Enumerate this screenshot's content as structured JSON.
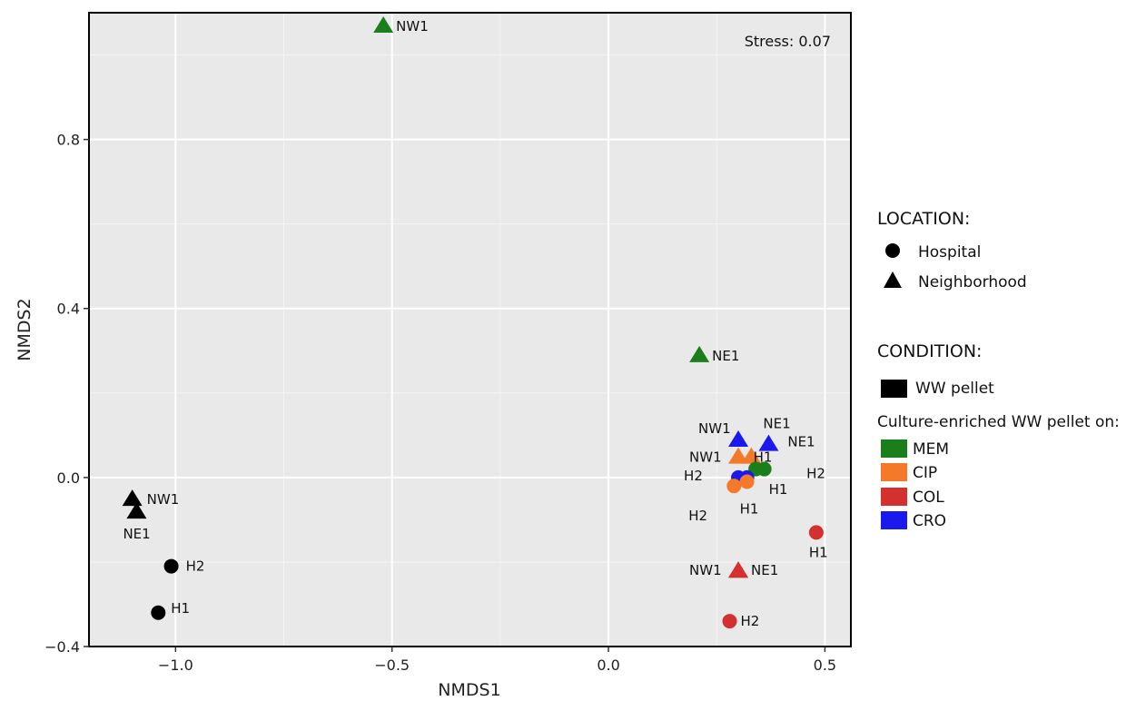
{
  "chart_data": {
    "type": "scatter",
    "xlabel": "NMDS1",
    "ylabel": "NMDS2",
    "xlim": [
      -1.2,
      0.56
    ],
    "ylim": [
      -0.4,
      1.1
    ],
    "x_ticks": [
      -1.0,
      -0.5,
      0.0,
      0.5
    ],
    "x_tick_labels": [
      "−1.0",
      "−0.5",
      "0.0",
      "0.5"
    ],
    "y_ticks": [
      -0.4,
      0.0,
      0.4,
      0.8
    ],
    "y_tick_labels": [
      "−0.4",
      "0.0",
      "0.4",
      "0.8"
    ],
    "grid": true,
    "annotation": "Stress: 0.07",
    "points": [
      {
        "x": -0.52,
        "y": 1.07,
        "label": "NW1",
        "shape": "triangle",
        "color": "#1a7f1a",
        "lx": 14,
        "ly": 6
      },
      {
        "x": 0.21,
        "y": 0.29,
        "label": "NE1",
        "shape": "triangle",
        "color": "#1a7f1a",
        "lx": 14,
        "ly": 6
      },
      {
        "x": 0.3,
        "y": 0.09,
        "label": "NW1",
        "shape": "triangle",
        "color": "#1a1aee",
        "lx": -44,
        "ly": -7
      },
      {
        "x": 0.37,
        "y": 0.08,
        "label": "NE1",
        "shape": "triangle",
        "color": "#1a1aee",
        "lx": -6,
        "ly": -17
      },
      {
        "x": 0.3,
        "y": 0.05,
        "label": "NW1",
        "shape": "triangle",
        "color": "#f47a2a",
        "lx": -54,
        "ly": 6
      },
      {
        "x": 0.33,
        "y": 0.05,
        "label": "NE1",
        "shape": "triangle",
        "color": "#f47a2a",
        "lx": 40,
        "ly": -11
      },
      {
        "x": 0.36,
        "y": 0.02,
        "label": "H1",
        "shape": "circle",
        "color": "#1a7f1a",
        "lx": -12,
        "ly": -8
      },
      {
        "x": 0.34,
        "y": 0.02,
        "label": "H2",
        "shape": "circle",
        "color": "#1a7f1a",
        "lx": 56,
        "ly": 10
      },
      {
        "x": 0.3,
        "y": 0.0,
        "label": "H2",
        "shape": "circle",
        "color": "#1a1aee",
        "lx": -60,
        "ly": 3
      },
      {
        "x": 0.32,
        "y": 0.0,
        "label": "H1",
        "shape": "circle",
        "color": "#1a1aee",
        "lx": 24,
        "ly": 18
      },
      {
        "x": 0.32,
        "y": -0.01,
        "label": "H1",
        "shape": "circle",
        "color": "#f47a2a",
        "lx": -8,
        "ly": 35
      },
      {
        "x": 0.29,
        "y": -0.02,
        "label": "H2",
        "shape": "circle",
        "color": "#f47a2a",
        "lx": -50,
        "ly": 38
      },
      {
        "x": 0.48,
        "y": -0.13,
        "label": "H1",
        "shape": "circle",
        "color": "#d43030",
        "lx": -8,
        "ly": 27
      },
      {
        "x": 0.3,
        "y": -0.22,
        "label": "NW1",
        "shape": "triangle",
        "color": "#d43030",
        "lx": -54,
        "ly": 5
      },
      {
        "x": 0.3,
        "y": -0.22,
        "label": "NE1",
        "shape": "triangle",
        "color": "#d43030",
        "lx": 14,
        "ly": 5
      },
      {
        "x": 0.28,
        "y": -0.34,
        "label": "H2",
        "shape": "circle",
        "color": "#d43030",
        "lx": 12,
        "ly": 5
      },
      {
        "x": -1.1,
        "y": -0.05,
        "label": "NW1",
        "shape": "triangle",
        "color": "#000000",
        "lx": 16,
        "ly": 6
      },
      {
        "x": -1.09,
        "y": -0.08,
        "label": "NE1",
        "shape": "triangle",
        "color": "#000000",
        "lx": -15,
        "ly": 30
      },
      {
        "x": -1.01,
        "y": -0.21,
        "label": "H2",
        "shape": "circle",
        "color": "#000000",
        "lx": 16,
        "ly": 5
      },
      {
        "x": -1.04,
        "y": -0.32,
        "label": "H1",
        "shape": "circle",
        "color": "#000000",
        "lx": 14,
        "ly": 0
      }
    ],
    "legend": {
      "location_title": "LOCATION:",
      "location_items": [
        {
          "shape": "circle",
          "label": "Hospital"
        },
        {
          "shape": "triangle",
          "label": "Neighborhood"
        }
      ],
      "condition_title": "CONDITION:",
      "pellet_item": {
        "color": "#000000",
        "label": "WW pellet"
      },
      "enriched_subtitle": "Culture-enriched WW pellet on:",
      "enriched_items": [
        {
          "color": "#1a7f1a",
          "label": "MEM"
        },
        {
          "color": "#f47a2a",
          "label": "CIP"
        },
        {
          "color": "#d43030",
          "label": "COL"
        },
        {
          "color": "#1a1aee",
          "label": "CRO"
        }
      ]
    }
  }
}
